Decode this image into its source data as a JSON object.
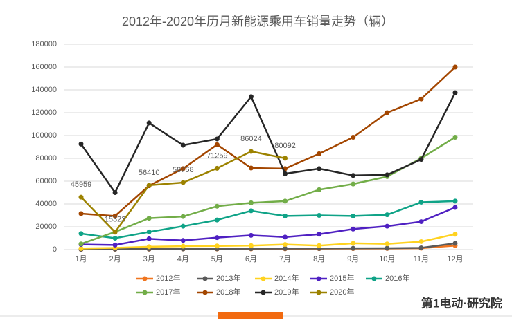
{
  "chart_data": {
    "type": "line",
    "title": "2012年-2020年历月新能源乘用车销量走势（辆）",
    "categories": [
      "1月",
      "2月",
      "3月",
      "4月",
      "5月",
      "6月",
      "7月",
      "8月",
      "9月",
      "10月",
      "11月",
      "12月"
    ],
    "ylim": [
      0,
      180000
    ],
    "yticks": [
      0,
      20000,
      40000,
      60000,
      80000,
      100000,
      120000,
      140000,
      160000,
      180000
    ],
    "grid": true,
    "legend": "bottom",
    "footer": "第1电动·研究院",
    "series": [
      {
        "name": "2012年",
        "color": "#f0751f",
        "values": [
          200,
          300,
          400,
          500,
          500,
          600,
          700,
          800,
          900,
          1000,
          1200,
          3500
        ]
      },
      {
        "name": "2013年",
        "color": "#5a5a5a",
        "values": [
          300,
          400,
          500,
          600,
          700,
          800,
          900,
          1000,
          1100,
          1200,
          1500,
          5500
        ]
      },
      {
        "name": "2014年",
        "color": "#ffd21f",
        "values": [
          1000,
          1500,
          2500,
          3000,
          3200,
          3500,
          4500,
          3500,
          5500,
          5000,
          7000,
          13500
        ]
      },
      {
        "name": "2015年",
        "color": "#4f20c2",
        "values": [
          4500,
          4000,
          9500,
          8000,
          10500,
          12500,
          11000,
          13500,
          18000,
          20500,
          24500,
          37000
        ]
      },
      {
        "name": "2016年",
        "color": "#0fa387",
        "values": [
          14000,
          10000,
          15500,
          20500,
          26000,
          34000,
          29500,
          30000,
          29500,
          30500,
          41500,
          42500
        ]
      },
      {
        "name": "2017年",
        "color": "#72ad48",
        "values": [
          5000,
          15500,
          27500,
          29000,
          38000,
          41000,
          42500,
          52500,
          57500,
          64000,
          80000,
          98500
        ]
      },
      {
        "name": "2018年",
        "color": "#a34600",
        "values": [
          31500,
          29500,
          56000,
          71000,
          92000,
          71500,
          71000,
          84000,
          98500,
          120000,
          132000,
          160000
        ]
      },
      {
        "name": "2019年",
        "color": "#262626",
        "values": [
          92500,
          50000,
          111000,
          91500,
          97000,
          134000,
          66500,
          71000,
          65000,
          65500,
          79000,
          137500
        ]
      },
      {
        "name": "2020年",
        "color": "#9c8200",
        "data_labels": true,
        "values": [
          45959,
          15323,
          56410,
          58768,
          71259,
          86024,
          80092,
          null,
          null,
          null,
          null,
          null
        ]
      }
    ]
  }
}
